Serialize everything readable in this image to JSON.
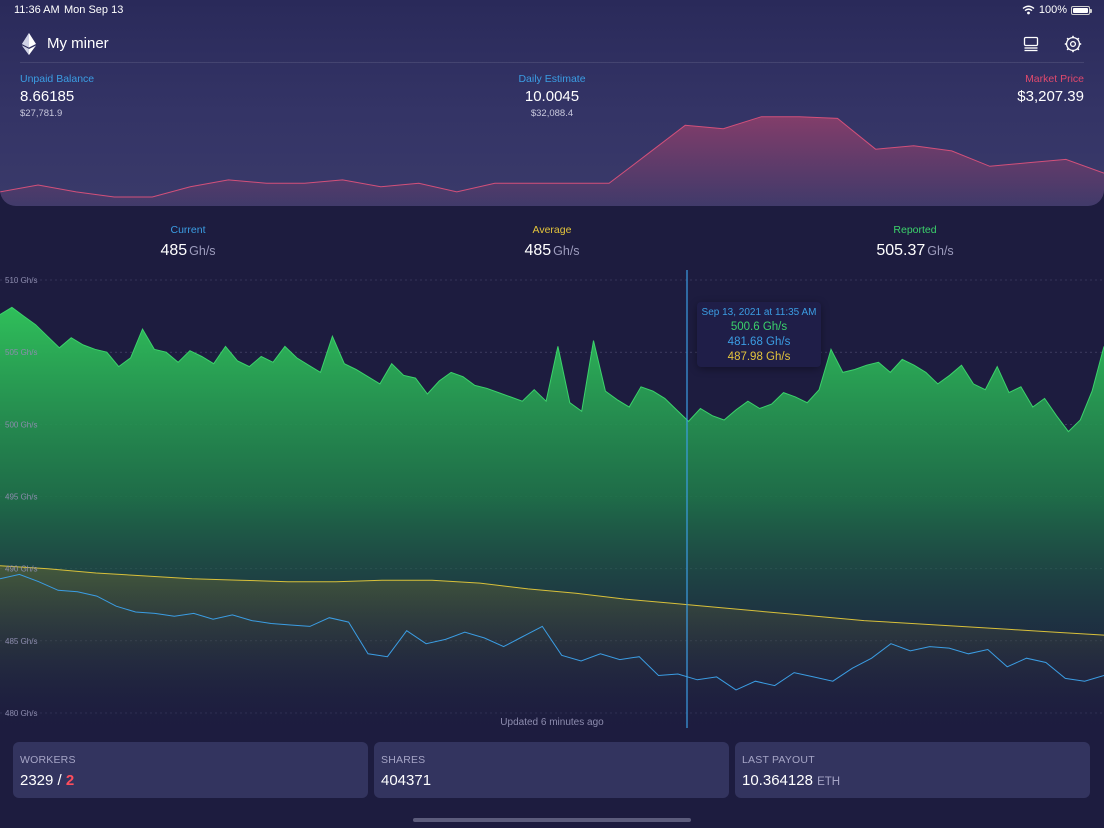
{
  "status_bar": {
    "time": "11:36 AM",
    "date": "Mon Sep 13",
    "battery": "100%",
    "battery_level": 1.0
  },
  "header": {
    "title": "My miner",
    "icons": {
      "logo": "ethereum-icon",
      "layout": "list-layout-icon",
      "settings": "gear-icon"
    }
  },
  "balance": {
    "unpaid": {
      "label": "Unpaid Balance",
      "value": "8.66185",
      "usd": "$27,781.9"
    },
    "daily": {
      "label": "Daily Estimate",
      "value": "10.0045",
      "usd": "$32,088.4"
    },
    "market": {
      "label": "Market Price",
      "value": "$3,207.39"
    }
  },
  "hashrate": {
    "current": {
      "label": "Current",
      "value": "485",
      "unit": "Gh/s"
    },
    "average": {
      "label": "Average",
      "value": "485",
      "unit": "Gh/s"
    },
    "reported": {
      "label": "Reported",
      "value": "505.37",
      "unit": "Gh/s"
    }
  },
  "colors": {
    "blue": "#3b9de3",
    "yellow": "#e3c43b",
    "green": "#3bd26b",
    "red": "#e0496d",
    "bg": "#1d1c3f",
    "card": "#33345f"
  },
  "tooltip": {
    "date": "Sep 13, 2021 at 11:35 AM",
    "reported": "500.6 Gh/s",
    "current": "481.68 Gh/s",
    "average": "487.98 Gh/s"
  },
  "updated": "Updated 6 minutes ago",
  "cards": {
    "workers": {
      "label": "WORKERS",
      "online": "2329",
      "sep": " / ",
      "offline": "2"
    },
    "shares": {
      "label": "SHARES",
      "value": "404371"
    },
    "payout": {
      "label": "LAST PAYOUT",
      "value": "10.364128",
      "unit": "ETH"
    }
  },
  "chart_data": [
    {
      "type": "area",
      "title": "",
      "series": [
        {
          "values": [
            3,
            7,
            3,
            0,
            0,
            6,
            10,
            8,
            8,
            10,
            6,
            8,
            3,
            8,
            8,
            8,
            8,
            25,
            42,
            40,
            47,
            47,
            46,
            28,
            30,
            27,
            18,
            20,
            22,
            14
          ]
        }
      ]
    },
    {
      "type": "line",
      "ylim": [
        480,
        510
      ],
      "yticks": [
        "510 Gh/s",
        "505 Gh/s",
        "500 Gh/s",
        "495 Gh/s",
        "490 Gh/s",
        "485 Gh/s",
        "480 Gh/s"
      ],
      "series": [
        {
          "name": "Reported",
          "color": "#3bd26b",
          "area": true,
          "values": [
            507.6,
            508.1,
            507.5,
            506.9,
            506.1,
            505.3,
            506.0,
            505.5,
            505.2,
            505.0,
            504.0,
            504.6,
            506.6,
            505.2,
            505.0,
            504.3,
            505.1,
            504.7,
            504.2,
            505.4,
            504.4,
            504.0,
            504.7,
            504.3,
            505.4,
            504.6,
            504.1,
            503.6,
            506.1,
            504.2,
            503.8,
            503.3,
            502.8,
            504.2,
            503.4,
            503.2,
            502.1,
            503.0,
            503.6,
            503.3,
            502.7,
            502.5,
            502.2,
            501.9,
            501.6,
            502.4,
            501.6,
            505.4,
            501.5,
            500.9,
            505.8,
            502.3,
            501.7,
            501.2,
            502.6,
            502.3,
            501.8,
            501.0,
            500.2,
            501.1,
            500.6,
            500.3,
            501.0,
            501.6,
            501.1,
            501.4,
            502.2,
            501.9,
            501.5,
            502.4,
            505.2,
            503.6,
            503.8,
            504.1,
            504.3,
            503.6,
            504.5,
            504.1,
            503.6,
            502.8,
            503.4,
            504.1,
            502.8,
            502.4,
            504.0,
            502.2,
            502.6,
            501.2,
            501.8,
            500.6,
            499.5,
            500.3,
            502.3,
            505.4
          ]
        },
        {
          "name": "Average",
          "color": "#e3c43b",
          "area": true,
          "values": [
            490.2,
            490.0,
            489.7,
            489.5,
            489.3,
            489.2,
            489.1,
            489.1,
            489.2,
            489.2,
            489.0,
            488.6,
            488.3,
            487.9,
            487.6,
            487.3,
            487.0,
            486.7,
            486.4,
            486.2,
            486.0,
            485.8,
            485.6,
            485.4
          ]
        },
        {
          "name": "Current",
          "color": "#3b9de3",
          "area": false,
          "values": [
            489.3,
            489.6,
            489.1,
            488.5,
            488.4,
            488.1,
            487.4,
            487.0,
            486.9,
            486.7,
            486.9,
            486.5,
            486.8,
            486.4,
            486.2,
            486.1,
            486.0,
            486.6,
            486.3,
            484.1,
            483.9,
            485.7,
            484.8,
            485.1,
            485.6,
            485.2,
            484.6,
            485.3,
            486.0,
            484.0,
            483.6,
            484.1,
            483.7,
            483.9,
            482.6,
            482.7,
            482.3,
            482.5,
            481.6,
            482.2,
            481.9,
            482.8,
            482.5,
            482.2,
            483.1,
            483.8,
            484.8,
            484.3,
            484.6,
            484.5,
            484.1,
            484.4,
            483.2,
            483.8,
            483.5,
            482.4,
            482.2,
            482.6
          ]
        }
      ]
    }
  ]
}
